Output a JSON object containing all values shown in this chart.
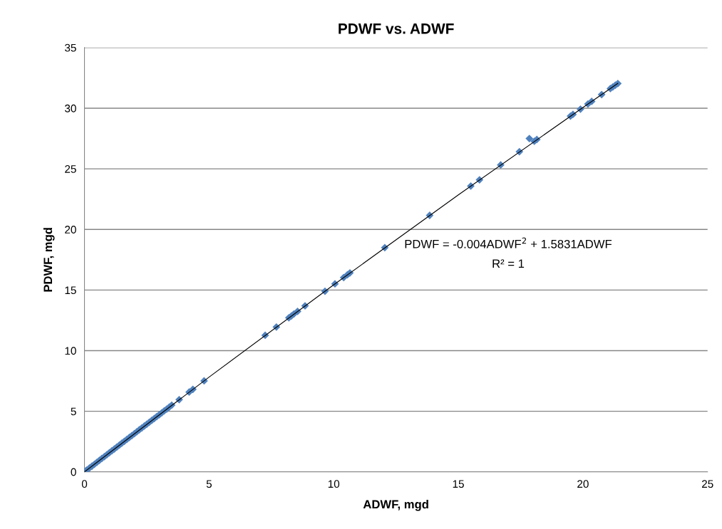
{
  "chart_data": {
    "type": "scatter",
    "title": "PDWF vs. ADWF",
    "xlabel": "ADWF, mgd",
    "ylabel": "PDWF, mgd",
    "annotations": [
      "PDWF = -0.004ADWF$^{2}$ + 1.5831ADWF",
      "R² = 1"
    ],
    "xlim": [
      0,
      25
    ],
    "xticks": [
      0,
      5,
      10,
      15,
      20,
      25
    ],
    "ylim": [
      0,
      35
    ],
    "yticks": [
      0,
      5,
      10,
      15,
      20,
      25,
      30,
      35
    ],
    "grid": "y",
    "series": [
      {
        "color": "#4f81bd",
        "marker": "diamond",
        "x": [
          0.05,
          0.1,
          0.2,
          0.3,
          0.4,
          0.5,
          0.6,
          0.7,
          0.8,
          0.9,
          1.0,
          1.1,
          1.2,
          1.3,
          1.4,
          1.5,
          1.6,
          1.7,
          1.8,
          1.9,
          2.0,
          2.1,
          2.2,
          2.3,
          2.4,
          2.5,
          2.6,
          2.7,
          2.8,
          2.9,
          3.0,
          3.1,
          3.2,
          3.3,
          3.4,
          3.5,
          3.8,
          4.2,
          4.35,
          4.8,
          7.25,
          7.7,
          8.2,
          8.3,
          8.4,
          8.55,
          8.85,
          9.65,
          10.05,
          10.4,
          10.55,
          10.65,
          12.05,
          13.85,
          15.5,
          15.85,
          16.7,
          17.45,
          17.85,
          18.05,
          18.15,
          19.5,
          19.6,
          19.9,
          20.2,
          20.35,
          20.75,
          21.1,
          21.2,
          21.3,
          21.4
        ],
        "values": [
          0.08,
          0.16,
          0.32,
          0.47,
          0.63,
          0.79,
          0.95,
          1.11,
          1.26,
          1.42,
          1.58,
          1.74,
          1.89,
          2.05,
          2.21,
          2.37,
          2.52,
          2.68,
          2.84,
          2.99,
          3.15,
          3.31,
          3.47,
          3.62,
          3.78,
          3.93,
          4.09,
          4.25,
          4.4,
          4.56,
          4.71,
          4.87,
          5.03,
          5.18,
          5.34,
          5.5,
          5.96,
          6.58,
          6.81,
          7.51,
          11.27,
          11.95,
          12.71,
          12.86,
          13.02,
          13.24,
          13.7,
          14.9,
          15.51,
          16.03,
          16.26,
          16.41,
          18.5,
          21.16,
          23.58,
          24.09,
          25.32,
          26.41,
          27.5,
          27.27,
          27.42,
          29.35,
          29.49,
          29.92,
          30.35,
          30.56,
          31.13,
          31.62,
          31.76,
          31.9,
          32.04
        ]
      },
      {
        "type": "line",
        "marker": "none",
        "color": "#000000",
        "x": [
          0,
          5,
          10,
          15,
          20,
          21.4
        ],
        "values": [
          0,
          7.82,
          15.43,
          22.85,
          30.06,
          32.05
        ]
      }
    ]
  }
}
